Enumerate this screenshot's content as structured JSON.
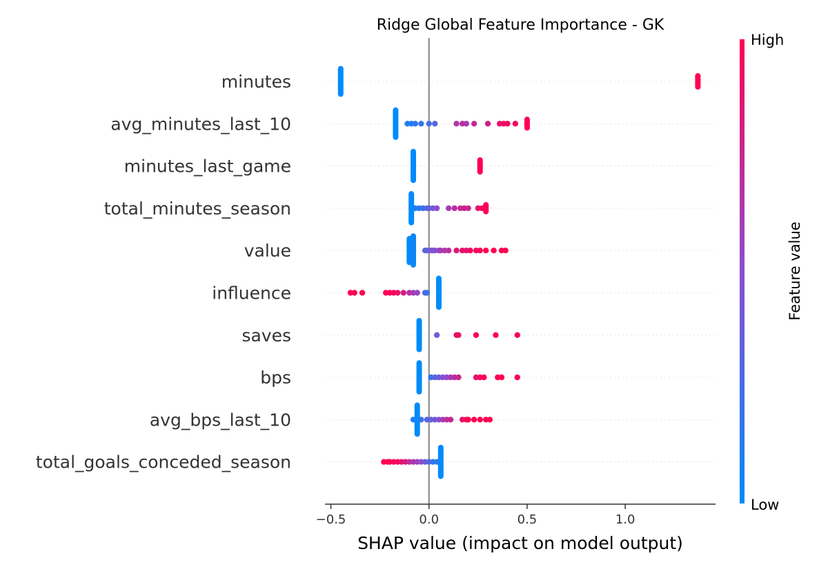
{
  "chart_data": {
    "type": "scatter",
    "subtype": "shap-beeswarm",
    "title": "Ridge Global Feature Importance - GK",
    "xlabel": "SHAP value (impact on model output)",
    "ylabel": "",
    "xlim": [
      -0.53,
      1.46
    ],
    "xticks": [
      {
        "value": -0.5,
        "label": "−0.5"
      },
      {
        "value": 0.0,
        "label": "0.0"
      },
      {
        "value": 0.5,
        "label": "0.5"
      },
      {
        "value": 1.0,
        "label": "1.0"
      }
    ],
    "zero_line": true,
    "colorbar": {
      "label": "Feature value",
      "high_label": "High",
      "low_label": "Low",
      "low_color": "#008bfb",
      "high_color": "#ff0052"
    },
    "features": [
      {
        "name": "minutes",
        "bands": [
          {
            "x": -0.45,
            "c": 0.0,
            "spread": 0.3
          },
          {
            "x": 1.37,
            "c": 1.0,
            "spread": 0.13
          }
        ],
        "points": []
      },
      {
        "name": "avg_minutes_last_10",
        "bands": [
          {
            "x": -0.17,
            "c": 0.0,
            "spread": 0.32
          },
          {
            "x": 0.5,
            "c": 1.0,
            "spread": 0.1
          }
        ],
        "points": [
          {
            "x": -0.11,
            "c": 0.1
          },
          {
            "x": -0.09,
            "c": 0.12
          },
          {
            "x": -0.07,
            "c": 0.15
          },
          {
            "x": -0.04,
            "c": 0.2
          },
          {
            "x": 0.0,
            "c": 0.25
          },
          {
            "x": 0.03,
            "c": 0.3
          },
          {
            "x": 0.14,
            "c": 0.65
          },
          {
            "x": 0.17,
            "c": 0.7
          },
          {
            "x": 0.19,
            "c": 0.62
          },
          {
            "x": 0.23,
            "c": 0.72
          },
          {
            "x": 0.3,
            "c": 0.8
          },
          {
            "x": 0.36,
            "c": 0.9
          },
          {
            "x": 0.38,
            "c": 0.92
          },
          {
            "x": 0.4,
            "c": 0.95
          },
          {
            "x": 0.44,
            "c": 0.97
          }
        ]
      },
      {
        "name": "minutes_last_game",
        "bands": [
          {
            "x": -0.08,
            "c": 0.0,
            "spread": 0.34
          },
          {
            "x": 0.26,
            "c": 1.0,
            "spread": 0.14
          }
        ],
        "points": []
      },
      {
        "name": "total_minutes_season",
        "bands": [
          {
            "x": -0.09,
            "c": 0.0,
            "spread": 0.34
          },
          {
            "x": 0.29,
            "c": 1.0,
            "spread": 0.08
          }
        ],
        "points": [
          {
            "x": -0.07,
            "c": 0.1
          },
          {
            "x": -0.05,
            "c": 0.15
          },
          {
            "x": -0.03,
            "c": 0.2
          },
          {
            "x": -0.01,
            "c": 0.3
          },
          {
            "x": 0.0,
            "c": 0.35
          },
          {
            "x": 0.02,
            "c": 0.4
          },
          {
            "x": 0.04,
            "c": 0.5
          },
          {
            "x": 0.1,
            "c": 0.6
          },
          {
            "x": 0.13,
            "c": 0.7
          },
          {
            "x": 0.16,
            "c": 0.72
          },
          {
            "x": 0.18,
            "c": 0.8
          },
          {
            "x": 0.2,
            "c": 0.75
          },
          {
            "x": 0.25,
            "c": 0.9
          },
          {
            "x": 0.27,
            "c": 0.95
          }
        ]
      },
      {
        "name": "value",
        "bands": [
          {
            "x": -0.1,
            "c": 0.0,
            "spread": 0.28
          },
          {
            "x": -0.08,
            "c": 0.05,
            "spread": 0.34
          }
        ],
        "points": [
          {
            "x": -0.02,
            "c": 0.3
          },
          {
            "x": -0.01,
            "c": 0.35
          },
          {
            "x": 0.01,
            "c": 0.4
          },
          {
            "x": 0.02,
            "c": 0.5
          },
          {
            "x": 0.03,
            "c": 0.45
          },
          {
            "x": 0.05,
            "c": 0.55
          },
          {
            "x": 0.06,
            "c": 0.6
          },
          {
            "x": 0.08,
            "c": 0.65
          },
          {
            "x": 0.1,
            "c": 0.7
          },
          {
            "x": 0.14,
            "c": 0.85
          },
          {
            "x": 0.17,
            "c": 0.9
          },
          {
            "x": 0.19,
            "c": 0.88
          },
          {
            "x": 0.21,
            "c": 0.95
          },
          {
            "x": 0.24,
            "c": 0.97
          },
          {
            "x": 0.26,
            "c": 0.95
          },
          {
            "x": 0.29,
            "c": 1.0
          },
          {
            "x": 0.33,
            "c": 1.0
          },
          {
            "x": 0.37,
            "c": 1.0
          },
          {
            "x": 0.39,
            "c": 1.0
          }
        ]
      },
      {
        "name": "influence",
        "bands": [
          {
            "x": 0.05,
            "c": 0.0,
            "spread": 0.34
          }
        ],
        "points": [
          {
            "x": -0.4,
            "c": 1.0
          },
          {
            "x": -0.38,
            "c": 1.0
          },
          {
            "x": -0.34,
            "c": 1.0
          },
          {
            "x": -0.22,
            "c": 1.0
          },
          {
            "x": -0.2,
            "c": 0.97
          },
          {
            "x": -0.18,
            "c": 1.0
          },
          {
            "x": -0.16,
            "c": 0.9
          },
          {
            "x": -0.13,
            "c": 0.8
          },
          {
            "x": -0.1,
            "c": 0.7
          },
          {
            "x": -0.08,
            "c": 0.6
          },
          {
            "x": -0.06,
            "c": 0.55
          },
          {
            "x": -0.02,
            "c": 0.3
          },
          {
            "x": -0.01,
            "c": 0.2
          }
        ]
      },
      {
        "name": "saves",
        "bands": [
          {
            "x": -0.05,
            "c": 0.0,
            "spread": 0.34
          }
        ],
        "points": [
          {
            "x": 0.04,
            "c": 0.4
          },
          {
            "x": 0.14,
            "c": 0.95
          },
          {
            "x": 0.15,
            "c": 0.9
          },
          {
            "x": 0.24,
            "c": 1.0
          },
          {
            "x": 0.34,
            "c": 1.0
          },
          {
            "x": 0.45,
            "c": 1.0
          }
        ]
      },
      {
        "name": "bps",
        "bands": [
          {
            "x": -0.05,
            "c": 0.0,
            "spread": 0.34
          }
        ],
        "points": [
          {
            "x": 0.01,
            "c": 0.2
          },
          {
            "x": 0.03,
            "c": 0.3
          },
          {
            "x": 0.05,
            "c": 0.4
          },
          {
            "x": 0.07,
            "c": 0.45
          },
          {
            "x": 0.09,
            "c": 0.55
          },
          {
            "x": 0.11,
            "c": 0.6
          },
          {
            "x": 0.13,
            "c": 0.7
          },
          {
            "x": 0.15,
            "c": 0.75
          },
          {
            "x": 0.24,
            "c": 0.9
          },
          {
            "x": 0.26,
            "c": 0.95
          },
          {
            "x": 0.28,
            "c": 1.0
          },
          {
            "x": 0.35,
            "c": 1.0
          },
          {
            "x": 0.37,
            "c": 1.0
          },
          {
            "x": 0.45,
            "c": 1.0
          }
        ]
      },
      {
        "name": "avg_bps_last_10",
        "bands": [
          {
            "x": -0.06,
            "c": 0.0,
            "spread": 0.34
          }
        ],
        "points": [
          {
            "x": -0.08,
            "c": 0.1
          },
          {
            "x": -0.04,
            "c": 0.2
          },
          {
            "x": -0.01,
            "c": 0.3
          },
          {
            "x": 0.01,
            "c": 0.35
          },
          {
            "x": 0.03,
            "c": 0.4
          },
          {
            "x": 0.05,
            "c": 0.5
          },
          {
            "x": 0.07,
            "c": 0.6
          },
          {
            "x": 0.09,
            "c": 0.7
          },
          {
            "x": 0.11,
            "c": 0.75
          },
          {
            "x": 0.17,
            "c": 0.9
          },
          {
            "x": 0.19,
            "c": 0.95
          },
          {
            "x": 0.2,
            "c": 1.0
          },
          {
            "x": 0.23,
            "c": 1.0
          },
          {
            "x": 0.26,
            "c": 1.0
          },
          {
            "x": 0.29,
            "c": 1.0
          },
          {
            "x": 0.31,
            "c": 1.0
          }
        ]
      },
      {
        "name": "total_goals_conceded_season",
        "bands": [
          {
            "x": 0.06,
            "c": 0.0,
            "spread": 0.34
          }
        ],
        "points": [
          {
            "x": -0.23,
            "c": 1.0
          },
          {
            "x": -0.21,
            "c": 1.0
          },
          {
            "x": -0.2,
            "c": 0.97
          },
          {
            "x": -0.18,
            "c": 0.97
          },
          {
            "x": -0.16,
            "c": 0.95
          },
          {
            "x": -0.14,
            "c": 0.9
          },
          {
            "x": -0.12,
            "c": 0.85
          },
          {
            "x": -0.1,
            "c": 0.7
          },
          {
            "x": -0.08,
            "c": 0.65
          },
          {
            "x": -0.06,
            "c": 0.6
          },
          {
            "x": -0.04,
            "c": 0.5
          },
          {
            "x": -0.02,
            "c": 0.4
          },
          {
            "x": 0.0,
            "c": 0.3
          },
          {
            "x": 0.02,
            "c": 0.2
          },
          {
            "x": 0.04,
            "c": 0.1
          }
        ]
      }
    ]
  }
}
